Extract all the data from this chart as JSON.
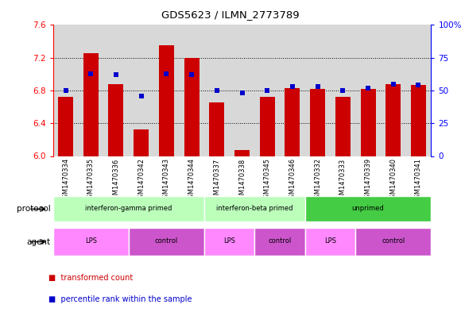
{
  "title": "GDS5623 / ILMN_2773789",
  "samples": [
    "GSM1470334",
    "GSM1470335",
    "GSM1470336",
    "GSM1470342",
    "GSM1470343",
    "GSM1470344",
    "GSM1470337",
    "GSM1470338",
    "GSM1470345",
    "GSM1470346",
    "GSM1470332",
    "GSM1470333",
    "GSM1470339",
    "GSM1470340",
    "GSM1470341"
  ],
  "transformed_count": [
    6.72,
    7.26,
    6.88,
    6.32,
    7.35,
    7.2,
    6.65,
    6.07,
    6.72,
    6.83,
    6.82,
    6.72,
    6.82,
    6.88,
    6.87
  ],
  "percentile_rank": [
    50,
    63,
    62,
    46,
    63,
    62,
    50,
    48,
    50,
    53,
    53,
    50,
    52,
    55,
    54
  ],
  "ylim_left": [
    6.0,
    7.6
  ],
  "ylim_right": [
    0,
    100
  ],
  "yticks_left": [
    6.0,
    6.4,
    6.8,
    7.2,
    7.6
  ],
  "yticks_right": [
    0,
    25,
    50,
    75,
    100
  ],
  "bar_color": "#cc0000",
  "dot_color": "#0000cc",
  "col_bg": "#d8d8d8",
  "plot_bg": "#ffffff",
  "protocols": [
    {
      "label": "interferon-gamma primed",
      "start": 0,
      "end": 5,
      "color": "#bbffbb"
    },
    {
      "label": "interferon-beta primed",
      "start": 6,
      "end": 9,
      "color": "#bbffbb"
    },
    {
      "label": "unprimed",
      "start": 10,
      "end": 14,
      "color": "#44cc44"
    }
  ],
  "agents": [
    {
      "label": "LPS",
      "start": 0,
      "end": 2,
      "color": "#ff88ff"
    },
    {
      "label": "control",
      "start": 3,
      "end": 5,
      "color": "#cc55cc"
    },
    {
      "label": "LPS",
      "start": 6,
      "end": 7,
      "color": "#ff88ff"
    },
    {
      "label": "control",
      "start": 8,
      "end": 9,
      "color": "#cc55cc"
    },
    {
      "label": "LPS",
      "start": 10,
      "end": 11,
      "color": "#ff88ff"
    },
    {
      "label": "control",
      "start": 12,
      "end": 14,
      "color": "#cc55cc"
    }
  ]
}
